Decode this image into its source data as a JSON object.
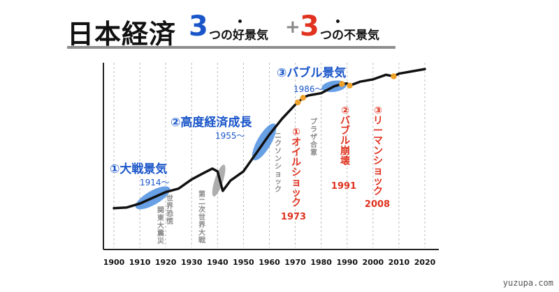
{
  "title": {
    "main": "日本経済",
    "num1": "3",
    "part1": "つの好景気",
    "plus": "+",
    "num2": "3",
    "part2": "つの不景気",
    "color_blue": "#1a56c9",
    "color_red": "#e0321f"
  },
  "watermark": "yuzupa.com",
  "chart_data": {
    "type": "line",
    "x_ticks": [
      "1900",
      "1910",
      "1920",
      "1930",
      "1940",
      "1950",
      "1960",
      "1970",
      "1980",
      "1990",
      "2000",
      "2010",
      "2020"
    ],
    "xlim": [
      1900,
      2020
    ],
    "grid": "vertical dashed",
    "series": [
      {
        "x": [
          1900,
          1905,
          1910,
          1915,
          1920,
          1925,
          1930,
          1935,
          1938,
          1940,
          1942,
          1945,
          1950,
          1955,
          1960,
          1965,
          1970,
          1973,
          1975,
          1980,
          1985,
          1988,
          1990,
          1991,
          1995,
          2000,
          2005,
          2008,
          2010,
          2015,
          2020
        ],
        "y": [
          1,
          1.3,
          3,
          5.5,
          8,
          9.5,
          13.5,
          16.5,
          18.2,
          17,
          8.5,
          13,
          17,
          25,
          33,
          40,
          46,
          49,
          50,
          51,
          54,
          55,
          55.2,
          54.3,
          56,
          57,
          59,
          58.3,
          59.5,
          60.5,
          61.5
        ]
      }
    ],
    "booms": [
      {
        "label": "①大戦景気",
        "year_label": "1914〜",
        "x": 1915
      },
      {
        "label": "②高度経済成長",
        "year_label": "1955〜",
        "x": 1958
      },
      {
        "label": "③バブル景気",
        "year_label": "1986〜",
        "x": 1985
      }
    ],
    "busts": [
      {
        "label": "①オイルショック",
        "year_label": "1973",
        "x": 1973
      },
      {
        "label": "②バブル崩壊",
        "year_label": "1991",
        "x": 1991
      },
      {
        "label": "③リーマンショック",
        "year_label": "2008",
        "x": 2008
      }
    ],
    "annotations": [
      {
        "label": "世界恐慌",
        "x": 1921
      },
      {
        "label": "関東大震災",
        "x": 1925
      },
      {
        "label": "第二次世界大戦",
        "x": 1942
      },
      {
        "label": "ニクソンショック",
        "x": 1968
      },
      {
        "label": "プラザ合意",
        "x": 1980
      }
    ]
  }
}
